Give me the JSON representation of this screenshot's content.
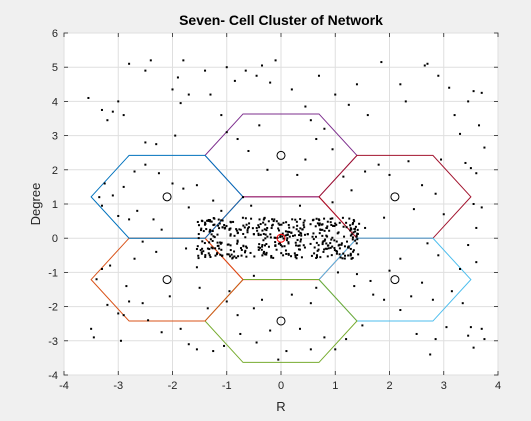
{
  "chart_data": {
    "type": "scatter",
    "title": "Seven- Cell Cluster of Network",
    "xlabel": "R",
    "ylabel": "Degree",
    "xlim": [
      -4,
      4
    ],
    "ylim": [
      -4,
      6
    ],
    "xticks": [
      -4,
      -3,
      -2,
      -1,
      0,
      1,
      2,
      3,
      4
    ],
    "yticks": [
      -4,
      -3,
      -2,
      -1,
      0,
      1,
      2,
      3,
      4,
      5,
      6
    ],
    "grid": true,
    "hexagon_radius": 1.4,
    "cells": [
      {
        "center": [
          0,
          0
        ],
        "color": "#ff0000"
      },
      {
        "center": [
          0,
          2.42
        ],
        "color": "#7e2f8e"
      },
      {
        "center": [
          2.1,
          1.21
        ],
        "color": "#a2142f"
      },
      {
        "center": [
          2.1,
          -1.21
        ],
        "color": "#4dbeee"
      },
      {
        "center": [
          0,
          -2.42
        ],
        "color": "#77ac30"
      },
      {
        "center": [
          -2.1,
          -1.21
        ],
        "color": "#d95319"
      },
      {
        "center": [
          -2.1,
          1.21
        ],
        "color": "#0072bd"
      }
    ],
    "base_stations": [
      [
        0,
        0
      ],
      [
        0,
        2.42
      ],
      [
        2.1,
        1.21
      ],
      [
        2.1,
        -1.21
      ],
      [
        0,
        -2.42
      ],
      [
        -2.1,
        -1.21
      ],
      [
        -2.1,
        1.21
      ]
    ],
    "points": [
      [
        -3.55,
        4.1
      ],
      [
        -3.3,
        3.75
      ],
      [
        -3.2,
        3.45
      ],
      [
        -3.1,
        3.7
      ],
      [
        -3.0,
        4.0
      ],
      [
        -2.9,
        3.6
      ],
      [
        -2.8,
        5.1
      ],
      [
        -2.5,
        4.9
      ],
      [
        -2.4,
        5.2
      ],
      [
        -2.0,
        4.35
      ],
      [
        -1.9,
        4.7
      ],
      [
        -1.8,
        5.2
      ],
      [
        -1.7,
        4.2
      ],
      [
        -1.85,
        3.95
      ],
      [
        -1.4,
        4.9
      ],
      [
        -1.3,
        4.2
      ],
      [
        -1.1,
        3.6
      ],
      [
        -1.0,
        5.0
      ],
      [
        -0.85,
        4.6
      ],
      [
        -0.65,
        4.9
      ],
      [
        -0.45,
        4.75
      ],
      [
        -0.35,
        5.05
      ],
      [
        -0.2,
        4.55
      ],
      [
        -0.1,
        5.2
      ],
      [
        0.2,
        4.35
      ],
      [
        0.45,
        3.85
      ],
      [
        0.55,
        3.45
      ],
      [
        0.7,
        4.75
      ],
      [
        1.0,
        4.2
      ],
      [
        1.25,
        3.9
      ],
      [
        1.4,
        4.5
      ],
      [
        1.6,
        3.6
      ],
      [
        1.85,
        5.15
      ],
      [
        2.2,
        4.5
      ],
      [
        2.3,
        4.0
      ],
      [
        2.65,
        5.05
      ],
      [
        2.7,
        5.1
      ],
      [
        2.9,
        4.75
      ],
      [
        3.1,
        4.4
      ],
      [
        3.2,
        3.6
      ],
      [
        3.3,
        3.05
      ],
      [
        3.45,
        4.0
      ],
      [
        3.55,
        4.3
      ],
      [
        3.65,
        3.3
      ],
      [
        3.7,
        4.25
      ],
      [
        3.75,
        2.65
      ],
      [
        3.5,
        2.05
      ],
      [
        3.6,
        1.9
      ],
      [
        3.4,
        2.2
      ],
      [
        3.55,
        1.0
      ],
      [
        3.7,
        0.9
      ],
      [
        3.6,
        0.3
      ],
      [
        3.45,
        -0.2
      ],
      [
        3.6,
        -0.7
      ],
      [
        3.3,
        -0.9
      ],
      [
        3.15,
        -1.55
      ],
      [
        3.35,
        -1.9
      ],
      [
        3.5,
        -2.6
      ],
      [
        3.45,
        -2.85
      ],
      [
        3.7,
        -2.65
      ],
      [
        3.55,
        -3.2
      ],
      [
        3.75,
        -2.95
      ],
      [
        3.05,
        -2.6
      ],
      [
        2.85,
        -2.95
      ],
      [
        2.75,
        -3.4
      ],
      [
        2.5,
        -2.8
      ],
      [
        2.2,
        -2.1
      ],
      [
        2.4,
        -1.7
      ],
      [
        2.6,
        -1.3
      ],
      [
        2.8,
        -1.8
      ],
      [
        2.9,
        -0.5
      ],
      [
        2.7,
        -0.15
      ],
      [
        1.9,
        -1.8
      ],
      [
        1.7,
        -1.65
      ],
      [
        1.5,
        -2.55
      ],
      [
        1.2,
        -2.95
      ],
      [
        1.0,
        -3.25
      ],
      [
        0.8,
        -2.9
      ],
      [
        0.55,
        -3.25
      ],
      [
        0.35,
        -2.65
      ],
      [
        -0.2,
        -2.7
      ],
      [
        -0.45,
        -3.05
      ],
      [
        -0.8,
        -2.25
      ],
      [
        -0.75,
        -2.8
      ],
      [
        -1.05,
        -3.15
      ],
      [
        -1.25,
        -3.3
      ],
      [
        -1.35,
        -2.05
      ],
      [
        -1.5,
        -1.45
      ],
      [
        -1.55,
        -3.25
      ],
      [
        -1.7,
        -3.1
      ],
      [
        -1.85,
        -2.65
      ],
      [
        -2.2,
        -2.75
      ],
      [
        -2.45,
        -2.4
      ],
      [
        -2.55,
        -1.9
      ],
      [
        -2.8,
        -1.85
      ],
      [
        -2.9,
        -2.25
      ],
      [
        -2.95,
        -3.0
      ],
      [
        -3.0,
        -2.2
      ],
      [
        -3.2,
        -1.95
      ],
      [
        -3.15,
        -0.8
      ],
      [
        -3.3,
        -0.9
      ],
      [
        -3.4,
        -1.2
      ],
      [
        -3.5,
        -2.65
      ],
      [
        -3.45,
        -2.9
      ],
      [
        -2.7,
        -0.6
      ],
      [
        -2.3,
        -0.4
      ],
      [
        -1.75,
        -0.3
      ],
      [
        -1.3,
        -0.55
      ],
      [
        -2.2,
        0.25
      ],
      [
        -2.55,
        -0.1
      ],
      [
        -2.35,
        0.55
      ],
      [
        -2.8,
        0.55
      ],
      [
        -3.0,
        0.65
      ],
      [
        -3.3,
        0.95
      ],
      [
        -3.1,
        1.25
      ],
      [
        -3.25,
        1.6
      ],
      [
        -3.35,
        1.2
      ],
      [
        -2.9,
        1.5
      ],
      [
        -2.7,
        1.95
      ],
      [
        -2.5,
        2.15
      ],
      [
        -2.25,
        1.9
      ],
      [
        -2.0,
        1.6
      ],
      [
        -1.8,
        1.45
      ],
      [
        -1.55,
        1.55
      ],
      [
        -1.7,
        0.9
      ],
      [
        -1.45,
        0.5
      ],
      [
        -1.25,
        1.1
      ],
      [
        -1.1,
        0.8
      ],
      [
        -2.65,
        0.8
      ],
      [
        -2.5,
        2.8
      ],
      [
        -2.3,
        2.75
      ],
      [
        -1.95,
        3.0
      ],
      [
        -1.0,
        3.1
      ],
      [
        -0.8,
        2.9
      ],
      [
        -0.6,
        2.55
      ],
      [
        -0.4,
        3.3
      ],
      [
        -0.25,
        2.0
      ],
      [
        0.3,
        1.85
      ],
      [
        0.45,
        2.3
      ],
      [
        0.65,
        2.9
      ],
      [
        0.8,
        3.2
      ],
      [
        0.95,
        2.6
      ],
      [
        1.15,
        1.8
      ],
      [
        1.3,
        1.4
      ],
      [
        1.55,
        1.95
      ],
      [
        1.8,
        2.15
      ],
      [
        2.0,
        1.85
      ],
      [
        2.35,
        2.25
      ],
      [
        2.6,
        1.55
      ],
      [
        2.85,
        1.3
      ],
      [
        2.45,
        0.85
      ],
      [
        1.9,
        0.6
      ],
      [
        1.55,
        0.3
      ],
      [
        3.0,
        0.7
      ],
      [
        2.95,
        2.3
      ],
      [
        -0.7,
        1.2
      ],
      [
        -0.55,
        0.95
      ],
      [
        0.35,
        0.95
      ],
      [
        0.95,
        1.05
      ],
      [
        1.2,
        0.45
      ],
      [
        1.3,
        -0.6
      ],
      [
        1.05,
        -1.0
      ],
      [
        1.4,
        -1.05
      ],
      [
        1.65,
        -1.25
      ],
      [
        2.0,
        -0.95
      ],
      [
        2.2,
        -0.6
      ],
      [
        0.55,
        -1.9
      ],
      [
        0.2,
        -1.65
      ],
      [
        -0.35,
        -1.8
      ],
      [
        -0.5,
        -2.05
      ],
      [
        -0.95,
        -1.55
      ],
      [
        -1.0,
        -1.85
      ],
      [
        0.1,
        -3.3
      ],
      [
        -0.05,
        -3.55
      ],
      [
        0.65,
        -1.45
      ],
      [
        1.35,
        -1.4
      ],
      [
        -0.5,
        -1.1
      ],
      [
        -2.05,
        -1.7
      ],
      [
        -1.55,
        -0.85
      ],
      [
        -2.85,
        -1.4
      ]
    ]
  }
}
